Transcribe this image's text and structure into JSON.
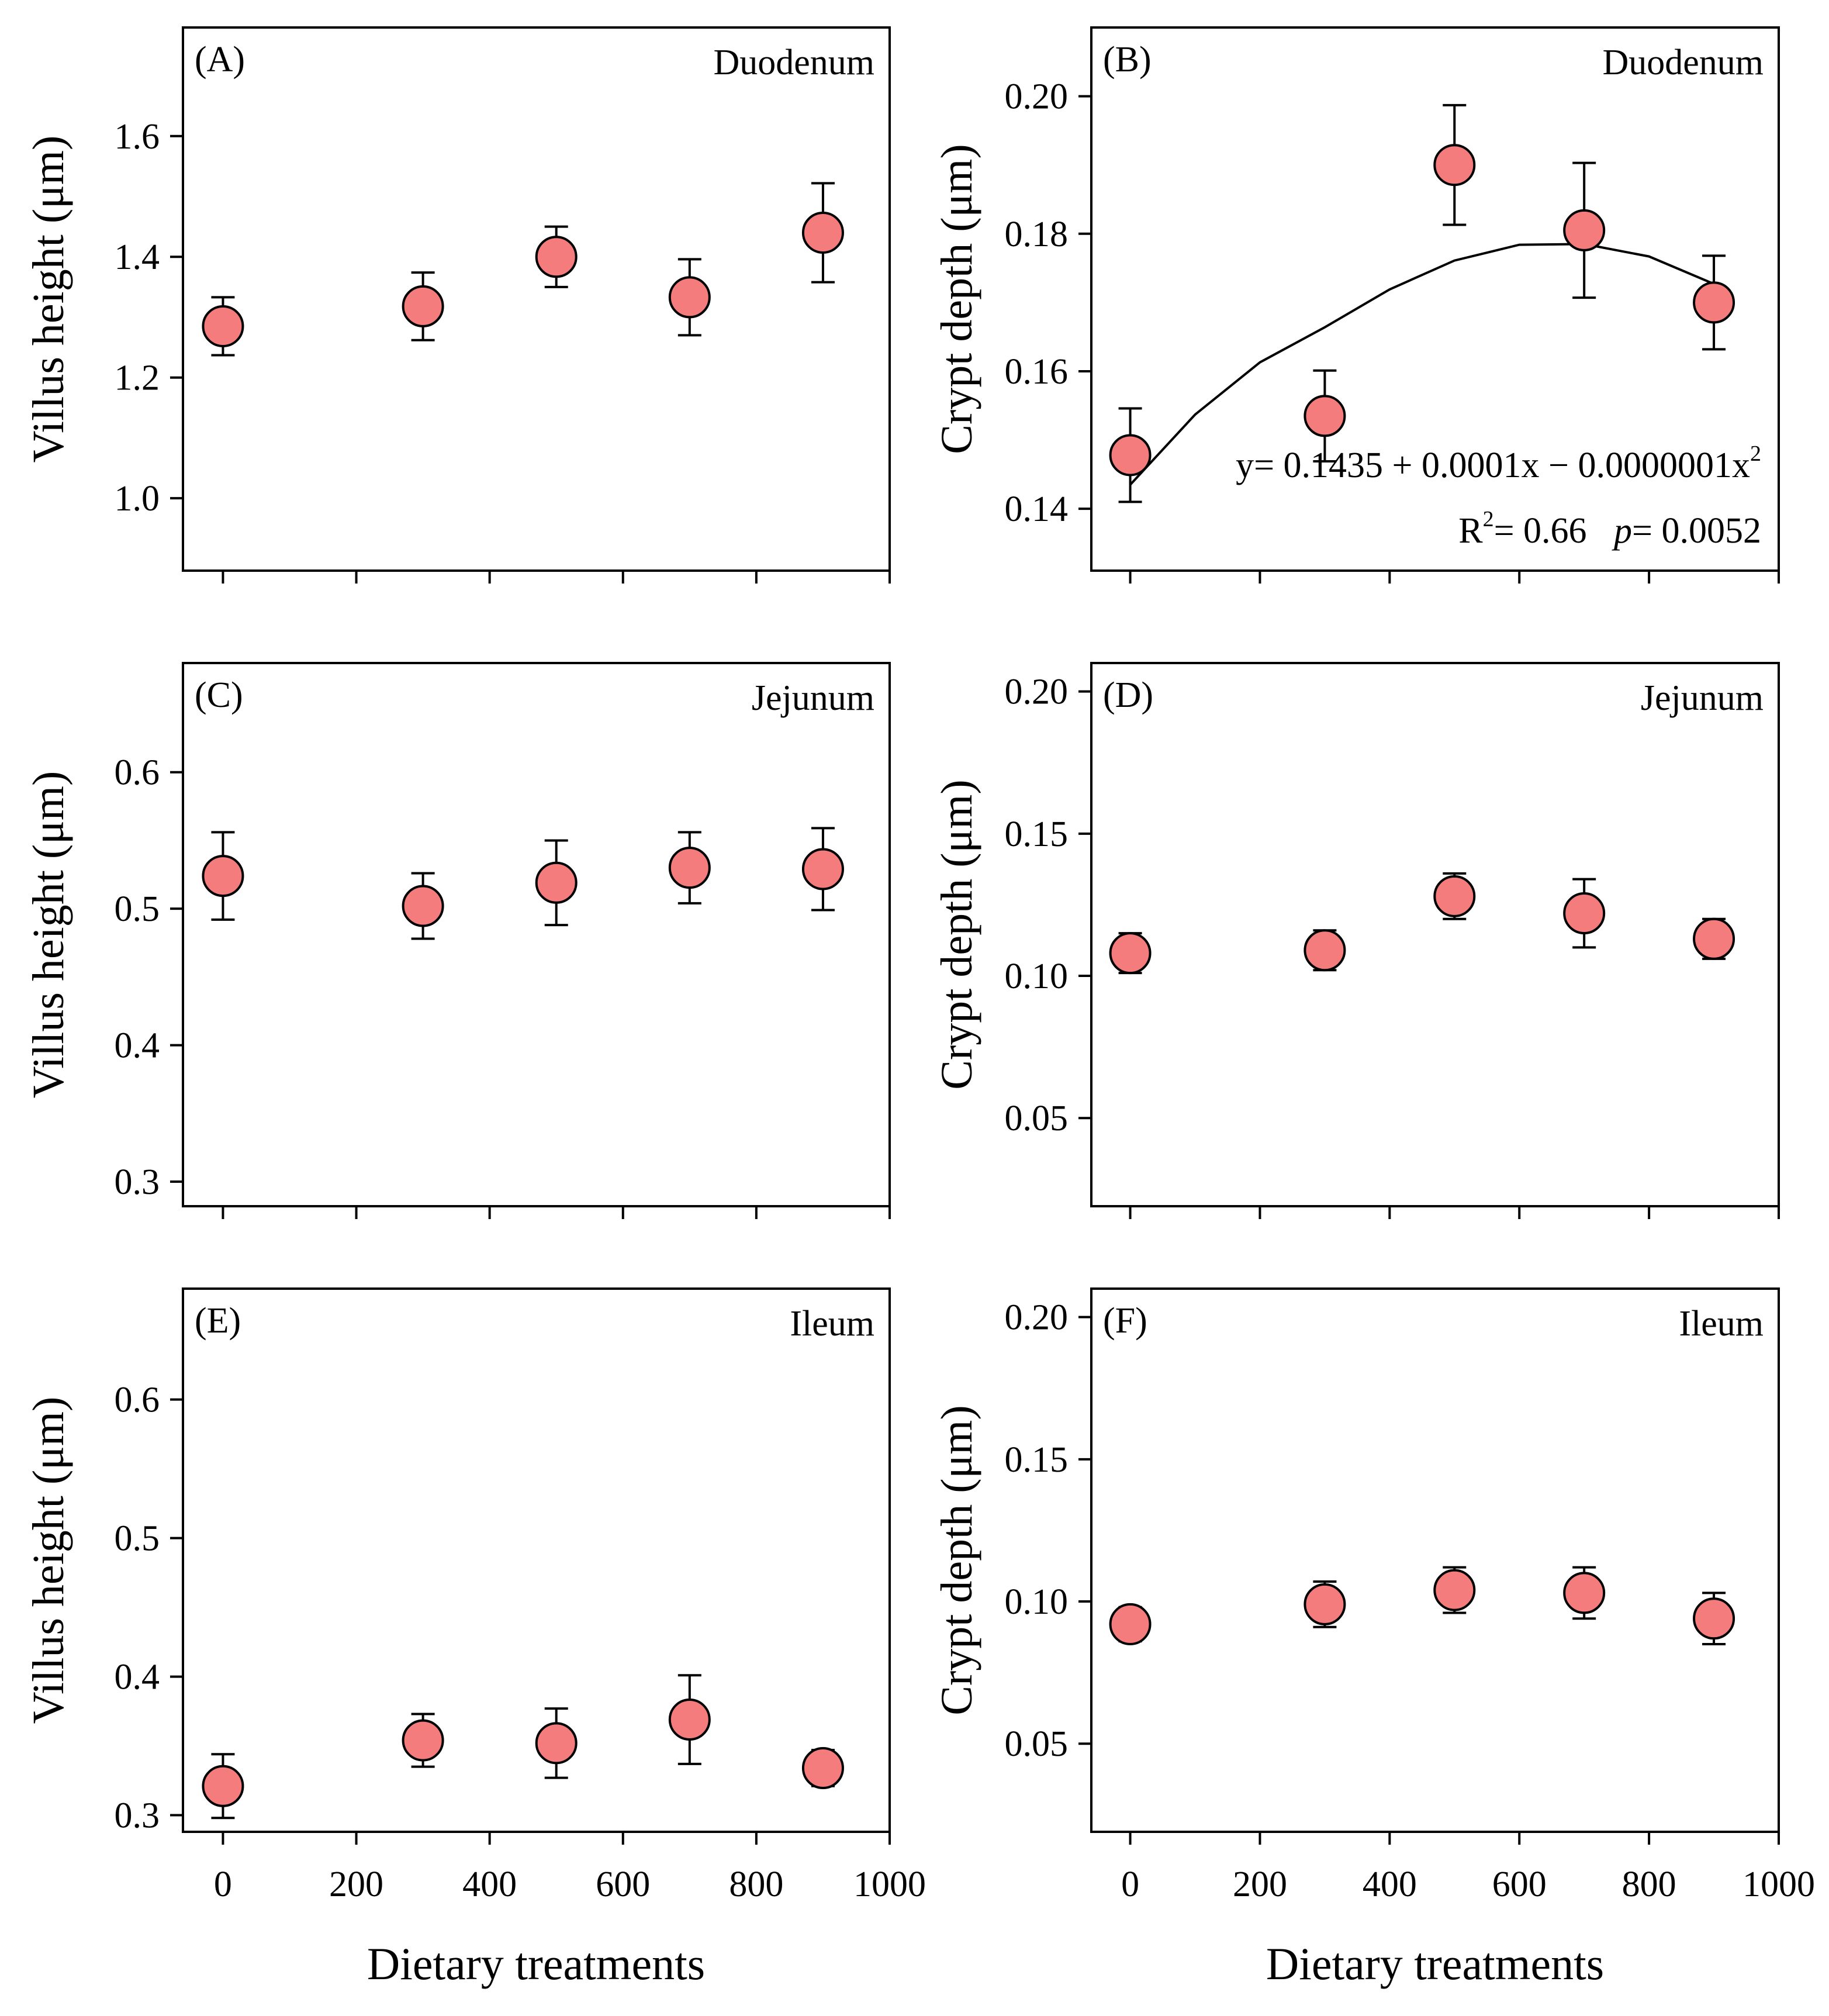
{
  "figure": {
    "x_axis_title": "Dietary treatments",
    "marker_color": "#f47c7c",
    "marker_stroke": "#000000"
  },
  "chart_data": [
    {
      "type": "scatter",
      "panel_label": "(A)",
      "region": "Duodenum",
      "ylabel": "Villus height (μm)",
      "x": [
        0,
        300,
        500,
        700,
        900
      ],
      "values": [
        1.285,
        1.318,
        1.4,
        1.333,
        1.44
      ],
      "errors": [
        0.048,
        0.056,
        0.05,
        0.063,
        0.082
      ],
      "xlim": [
        -60,
        1000
      ],
      "ylim": [
        0.88,
        1.78
      ],
      "yticks": [
        1.0,
        1.2,
        1.4,
        1.6
      ],
      "ytick_labels": [
        "1.0",
        "1.2",
        "1.4",
        "1.6"
      ],
      "xticks": [
        0,
        200,
        400,
        600,
        800,
        1000
      ],
      "xtick_labels": []
    },
    {
      "type": "scatter",
      "panel_label": "(B)",
      "region": "Duodenum",
      "ylabel": "Crypt depth (μm)",
      "x": [
        0,
        300,
        500,
        700,
        900
      ],
      "values": [
        0.1478,
        0.1535,
        0.19,
        0.1805,
        0.17
      ],
      "errors": [
        0.0068,
        0.0066,
        0.0087,
        0.0098,
        0.0068
      ],
      "xlim": [
        -60,
        1000
      ],
      "ylim": [
        0.131,
        0.21
      ],
      "yticks": [
        0.14,
        0.16,
        0.18,
        0.2
      ],
      "ytick_labels": [
        "0.14",
        "0.16",
        "0.18",
        "0.20"
      ],
      "xticks": [
        0,
        200,
        400,
        600,
        800,
        1000
      ],
      "xtick_labels": [],
      "fit": {
        "type": "quadratic",
        "coefficients": [
          0.1435,
          0.0001,
          -1e-07
        ],
        "curve_x": [
          0,
          100,
          200,
          300,
          400,
          500,
          600,
          700,
          800,
          900
        ],
        "curve_y": [
          0.1435,
          0.1537,
          0.1613,
          0.1664,
          0.1719,
          0.1761,
          0.1784,
          0.1785,
          0.1767,
          0.1727
        ],
        "equation_main": "y= 0.1435 + 0.0001x − 0.0000001x",
        "equation_sup": "2",
        "r2_prefix": "R",
        "r2_sup": "2",
        "r2_value": "= 0.66",
        "p_label": "p",
        "p_value": "= 0.0052"
      }
    },
    {
      "type": "scatter",
      "panel_label": "(C)",
      "region": "Jejunum",
      "ylabel": "Villus height (μm)",
      "x": [
        0,
        300,
        500,
        700,
        900
      ],
      "values": [
        0.524,
        0.502,
        0.519,
        0.53,
        0.529
      ],
      "errors": [
        0.032,
        0.024,
        0.031,
        0.026,
        0.03
      ],
      "xlim": [
        -60,
        1000
      ],
      "ylim": [
        0.282,
        0.68
      ],
      "yticks": [
        0.3,
        0.4,
        0.5,
        0.6
      ],
      "ytick_labels": [
        "0.3",
        "0.4",
        "0.5",
        "0.6"
      ],
      "xticks": [
        0,
        200,
        400,
        600,
        800,
        1000
      ],
      "xtick_labels": []
    },
    {
      "type": "scatter",
      "panel_label": "(D)",
      "region": "Jejunum",
      "ylabel": "Crypt depth (μm)",
      "x": [
        0,
        300,
        500,
        700,
        900
      ],
      "values": [
        0.108,
        0.109,
        0.128,
        0.122,
        0.113
      ],
      "errors": [
        0.007,
        0.007,
        0.008,
        0.012,
        0.007
      ],
      "xlim": [
        -60,
        1000
      ],
      "ylim": [
        0.019,
        0.21
      ],
      "yticks": [
        0.05,
        0.1,
        0.15,
        0.2
      ],
      "ytick_labels": [
        "0.05",
        "0.10",
        "0.15",
        "0.20"
      ],
      "xticks": [
        0,
        200,
        400,
        600,
        800,
        1000
      ],
      "xtick_labels": []
    },
    {
      "type": "scatter",
      "panel_label": "(E)",
      "region": "Ileum",
      "ylabel": "Villus height (μm)",
      "x": [
        0,
        300,
        500,
        700,
        900
      ],
      "values": [
        0.321,
        0.354,
        0.352,
        0.369,
        0.334
      ],
      "errors": [
        0.023,
        0.019,
        0.025,
        0.032,
        0.013
      ],
      "xlim": [
        -60,
        1000
      ],
      "ylim": [
        0.288,
        0.68
      ],
      "yticks": [
        0.3,
        0.4,
        0.5,
        0.6
      ],
      "ytick_labels": [
        "0.3",
        "0.4",
        "0.5",
        "0.6"
      ],
      "xticks": [
        0,
        200,
        400,
        600,
        800,
        1000
      ],
      "xtick_labels": [
        "0",
        "200",
        "400",
        "600",
        "800",
        "1000"
      ]
    },
    {
      "type": "scatter",
      "panel_label": "(F)",
      "region": "Ileum",
      "ylabel": "Crypt depth (μm)",
      "x": [
        0,
        300,
        500,
        700,
        900
      ],
      "values": [
        0.092,
        0.099,
        0.104,
        0.103,
        0.094
      ],
      "errors": [
        0.006,
        0.008,
        0.008,
        0.009,
        0.009
      ],
      "xlim": [
        -60,
        1000
      ],
      "ylim": [
        0.019,
        0.21
      ],
      "yticks": [
        0.05,
        0.1,
        0.15,
        0.2
      ],
      "ytick_labels": [
        "0.05",
        "0.10",
        "0.15",
        "0.20"
      ],
      "xticks": [
        0,
        200,
        400,
        600,
        800,
        1000
      ],
      "xtick_labels": [
        "0",
        "200",
        "400",
        "600",
        "800",
        "1000"
      ]
    }
  ]
}
